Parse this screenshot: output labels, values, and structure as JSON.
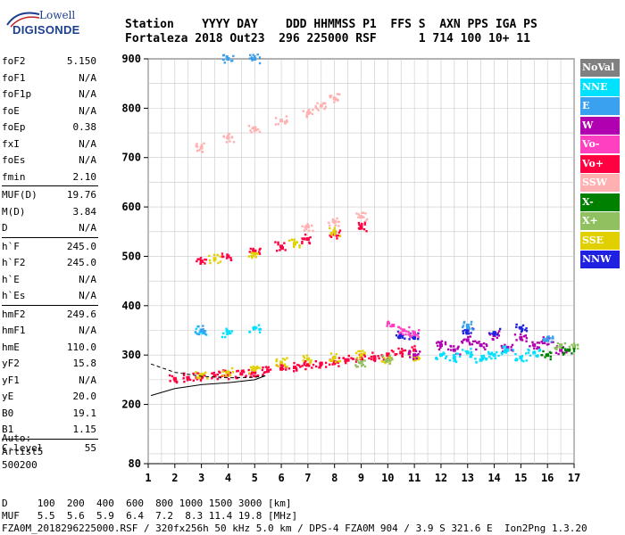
{
  "header": {
    "line1": "Station    YYYY DAY    DDD HHMMSS P1  FFS S  AXN PPS IGA PS",
    "line2": "Fortaleza 2018 Out23  296 225000 RSF      1 714 100 10+ 11"
  },
  "logo": {
    "lowell": "Lowell",
    "digisonde": "DIGISONDE"
  },
  "params": [
    {
      "k": "foF2",
      "v": "5.150"
    },
    {
      "k": "foF1",
      "v": "N/A"
    },
    {
      "k": "foF1p",
      "v": "N/A"
    },
    {
      "k": "foE",
      "v": "N/A"
    },
    {
      "k": "foEp",
      "v": "0.38"
    },
    {
      "k": "fxI",
      "v": "N/A"
    },
    {
      "k": "foEs",
      "v": "N/A"
    },
    {
      "k": "fmin",
      "v": "2.10"
    },
    {
      "k": "MUF(D)",
      "v": "19.76"
    },
    {
      "k": "M(D)",
      "v": "3.84"
    },
    {
      "k": "D",
      "v": "N/A"
    },
    {
      "k": "h`F",
      "v": "245.0"
    },
    {
      "k": "h`F2",
      "v": "245.0"
    },
    {
      "k": "h`E",
      "v": "N/A"
    },
    {
      "k": "h`Es",
      "v": "N/A"
    },
    {
      "k": "hmF2",
      "v": "249.6"
    },
    {
      "k": "hmF1",
      "v": "N/A"
    },
    {
      "k": "hmE",
      "v": "110.0"
    },
    {
      "k": "yF2",
      "v": "15.8"
    },
    {
      "k": "yF1",
      "v": "N/A"
    },
    {
      "k": "yE",
      "v": "20.0"
    },
    {
      "k": "B0",
      "v": "19.1"
    },
    {
      "k": "B1",
      "v": "1.15"
    },
    {
      "k": "C-level",
      "v": "55"
    }
  ],
  "auto": [
    "Auto:",
    "Artist5",
    "500200"
  ],
  "legend": [
    {
      "label": "NoVal",
      "color": "#808080"
    },
    {
      "label": "NNE",
      "color": "#00e0ff"
    },
    {
      "label": "E",
      "color": "#3aa0f0"
    },
    {
      "label": "W",
      "color": "#b000b0"
    },
    {
      "label": "Vo-",
      "color": "#ff40c0"
    },
    {
      "label": "Vo+",
      "color": "#ff0040"
    },
    {
      "label": "SSW",
      "color": "#ffb0b0"
    },
    {
      "label": "X-",
      "color": "#008000"
    },
    {
      "label": "X+",
      "color": "#90c060"
    },
    {
      "label": "SSE",
      "color": "#e0d000"
    },
    {
      "label": "NNW",
      "color": "#2020e0"
    }
  ],
  "footer": {
    "line1": "D     100  200  400  600  800 1000 1500 3000 [km]",
    "line2": "MUF   5.5  5.6  5.9  6.4  7.2  8.3 11.4 19.8 [MHz]",
    "line3": "FZA0M_2018296225000.RSF / 320fx256h 50 kHz 5.0 km / DPS-4 FZA0M 904 / 3.9 S 321.6 E  Ion2Png 1.3.20"
  },
  "chart_data": {
    "type": "scatter",
    "title": "",
    "xlabel": "",
    "ylabel": "",
    "xlim": [
      1,
      17
    ],
    "ylim": [
      80,
      900
    ],
    "x_ticks": [
      1,
      2,
      3,
      4,
      5,
      6,
      7,
      8,
      9,
      10,
      11,
      12,
      13,
      14,
      15,
      16,
      17
    ],
    "y_ticks": [
      80,
      200,
      300,
      400,
      500,
      600,
      700,
      800,
      900
    ],
    "grid": true,
    "legend_position": "right",
    "series": [
      {
        "name": "Vo+",
        "color": "#ff0040",
        "points": [
          [
            2,
            252
          ],
          [
            2.5,
            254
          ],
          [
            3,
            256
          ],
          [
            3.5,
            258
          ],
          [
            4,
            260
          ],
          [
            4.5,
            262
          ],
          [
            5,
            265
          ],
          [
            5.5,
            268
          ],
          [
            6,
            272
          ],
          [
            6.5,
            275
          ],
          [
            7,
            280
          ],
          [
            7.5,
            283
          ],
          [
            8,
            286
          ],
          [
            8.5,
            290
          ],
          [
            9,
            293
          ],
          [
            9.5,
            296
          ],
          [
            10,
            300
          ],
          [
            10.5,
            305
          ],
          [
            11,
            310
          ],
          [
            3,
            490
          ],
          [
            4,
            500
          ],
          [
            5,
            510
          ],
          [
            6,
            520
          ],
          [
            7,
            535
          ],
          [
            8,
            545
          ],
          [
            9,
            560
          ]
        ]
      },
      {
        "name": "SSE",
        "color": "#e0d000",
        "points": [
          [
            3,
            260
          ],
          [
            4,
            265
          ],
          [
            5,
            270
          ],
          [
            6,
            285
          ],
          [
            7,
            292
          ],
          [
            8,
            295
          ],
          [
            9,
            300
          ],
          [
            10,
            290
          ],
          [
            11,
            295
          ],
          [
            3.5,
            495
          ],
          [
            5,
            505
          ],
          [
            6.5,
            525
          ],
          [
            8,
            550
          ]
        ]
      },
      {
        "name": "W",
        "color": "#b000b0",
        "points": [
          [
            11,
            300
          ],
          [
            12,
            320
          ],
          [
            12.5,
            310
          ],
          [
            13,
            330
          ],
          [
            13.5,
            320
          ],
          [
            14,
            340
          ],
          [
            14.5,
            315
          ],
          [
            15,
            335
          ],
          [
            15.5,
            320
          ],
          [
            16,
            330
          ],
          [
            16.5,
            310
          ]
        ]
      },
      {
        "name": "NNE",
        "color": "#00e0ff",
        "points": [
          [
            12,
            300
          ],
          [
            12.5,
            295
          ],
          [
            13,
            305
          ],
          [
            13.5,
            290
          ],
          [
            14,
            300
          ],
          [
            14.5,
            310
          ],
          [
            15,
            295
          ],
          [
            15.5,
            305
          ],
          [
            3,
            350
          ],
          [
            4,
            345
          ],
          [
            5,
            355
          ]
        ]
      },
      {
        "name": "NNW",
        "color": "#2020e0",
        "points": [
          [
            10.5,
            340
          ],
          [
            11,
            335
          ],
          [
            13,
            350
          ],
          [
            14,
            345
          ],
          [
            15,
            355
          ]
        ]
      },
      {
        "name": "SSW",
        "color": "#ffb0b0",
        "points": [
          [
            3,
            720
          ],
          [
            4,
            740
          ],
          [
            5,
            760
          ],
          [
            6,
            775
          ],
          [
            7,
            790
          ],
          [
            7.5,
            805
          ],
          [
            8,
            820
          ],
          [
            7,
            560
          ],
          [
            8,
            570
          ],
          [
            9,
            580
          ]
        ]
      },
      {
        "name": "E",
        "color": "#3aa0f0",
        "points": [
          [
            4,
            900
          ],
          [
            5,
            900
          ],
          [
            3,
            350
          ],
          [
            13,
            360
          ],
          [
            16,
            330
          ]
        ]
      },
      {
        "name": "X+",
        "color": "#90c060",
        "points": [
          [
            9,
            285
          ],
          [
            10,
            290
          ],
          [
            16.5,
            320
          ],
          [
            17,
            315
          ]
        ]
      },
      {
        "name": "X-",
        "color": "#008000",
        "points": [
          [
            16,
            300
          ],
          [
            16.8,
            310
          ]
        ]
      },
      {
        "name": "Vo-",
        "color": "#ff40c0",
        "points": [
          [
            10.2,
            360
          ],
          [
            10.6,
            350
          ],
          [
            11,
            345
          ]
        ]
      }
    ]
  }
}
